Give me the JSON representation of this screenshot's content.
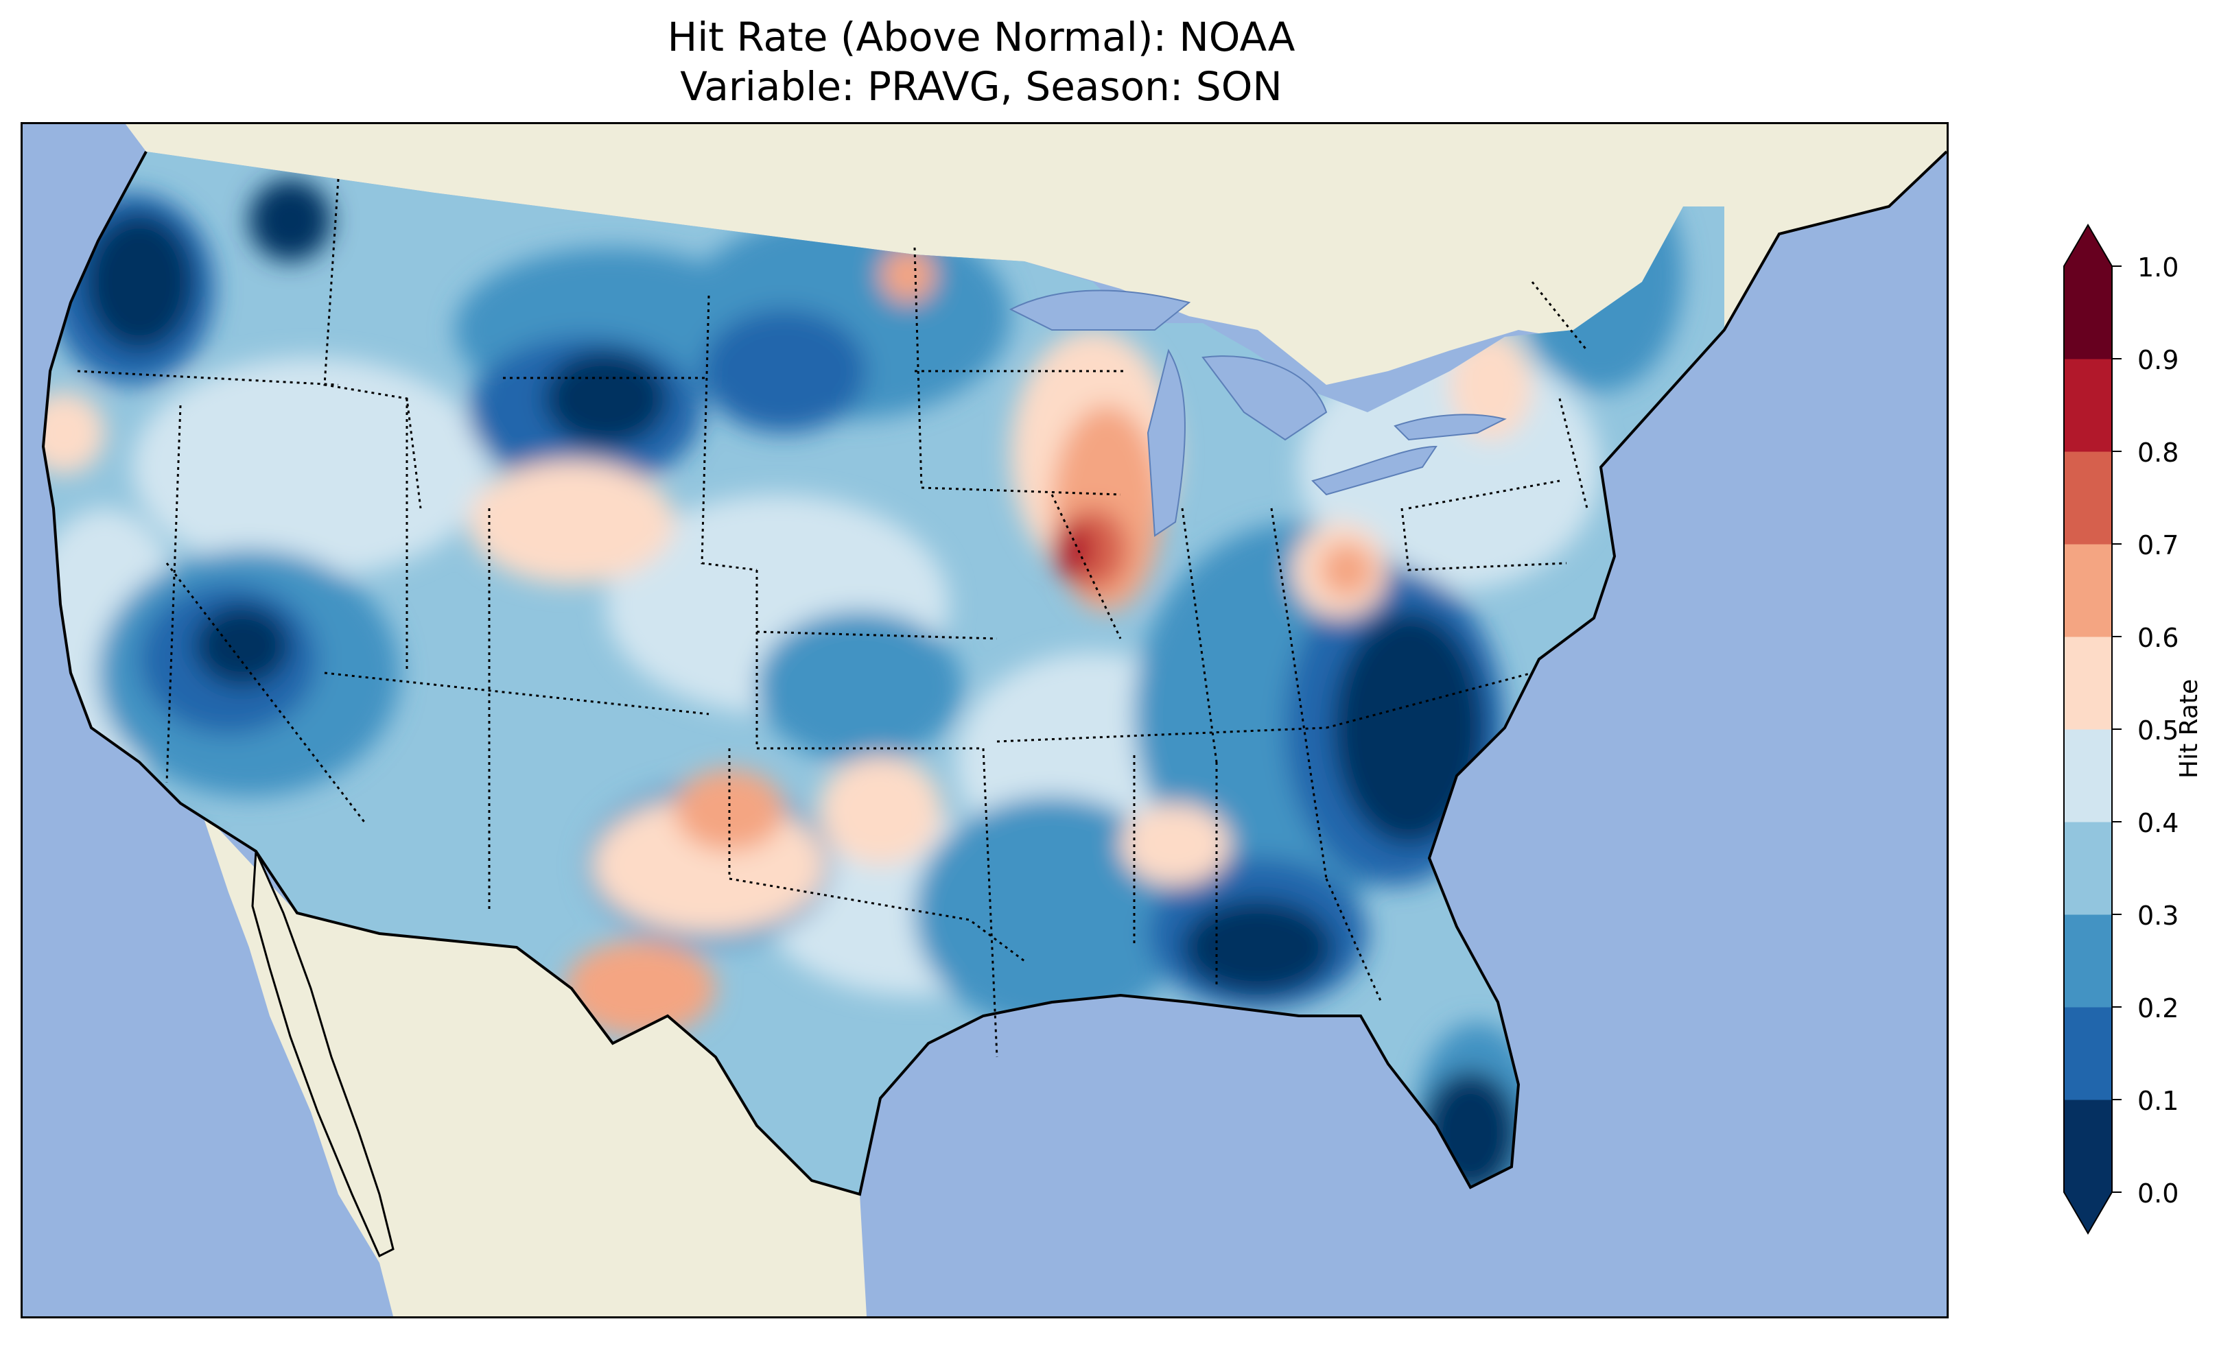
{
  "title": {
    "line1": "Hit Rate (Above Normal): NOAA",
    "line2": "Variable: PRAVG, Season: SON"
  },
  "colors": {
    "ocean": "#97b4e0",
    "land": "#efedda",
    "lakes": "#97b4e0"
  },
  "colorbar": {
    "label": "Hit Rate",
    "ticks": [
      "0.0",
      "0.1",
      "0.2",
      "0.3",
      "0.4",
      "0.5",
      "0.6",
      "0.7",
      "0.8",
      "0.9",
      "1.0"
    ],
    "colors": [
      "#053061",
      "#2166ac",
      "#4393c3",
      "#92c5de",
      "#d1e5f0",
      "#fddbc7",
      "#f4a582",
      "#d6604d",
      "#b2182b",
      "#67001f"
    ],
    "extend": "both"
  },
  "map_field": {
    "domain": "Contiguous United States",
    "notable_features": [
      {
        "region": "Pacific Northwest coast",
        "value_range": [
          0.0,
          0.1
        ]
      },
      {
        "region": "Georgia / Alabama",
        "value_range": [
          0.0,
          0.1
        ]
      },
      {
        "region": "Carolinas",
        "value_range": [
          0.0,
          0.1
        ]
      },
      {
        "region": "South Florida",
        "value_range": [
          0.0,
          0.1
        ]
      },
      {
        "region": "Northern Illinois",
        "value_range": [
          0.8,
          0.9
        ]
      },
      {
        "region": "West Texas",
        "value_range": [
          0.6,
          0.7
        ]
      }
    ]
  }
}
